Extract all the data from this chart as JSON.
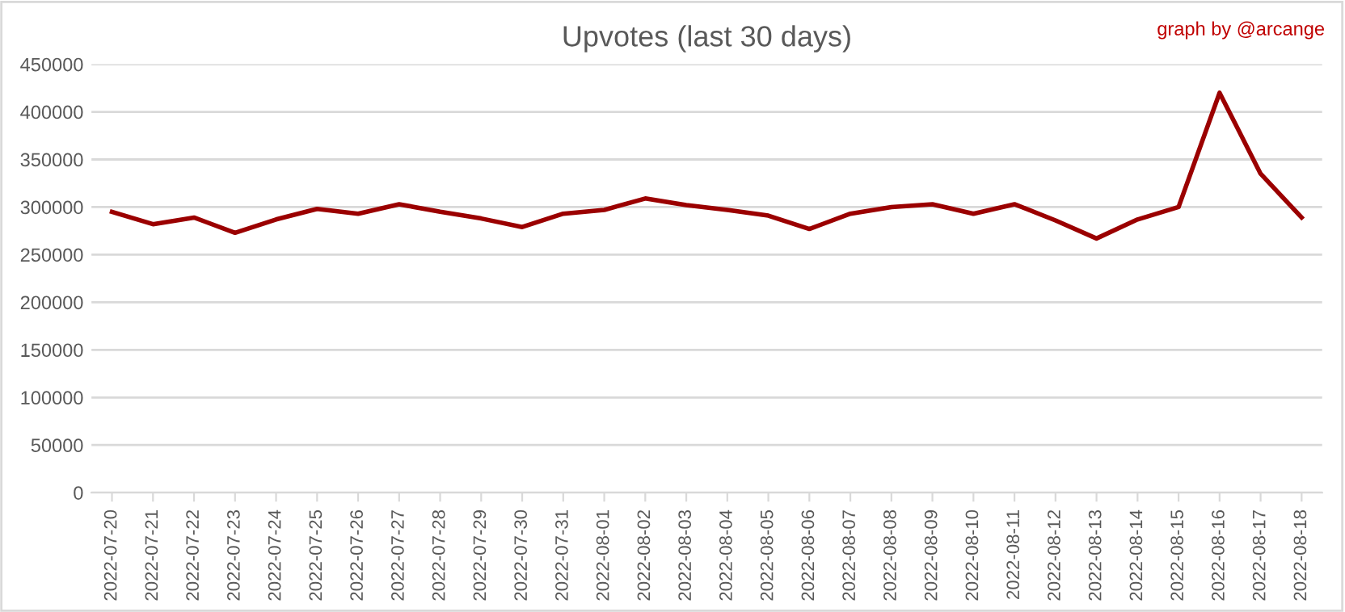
{
  "chart_data": {
    "type": "line",
    "title": "Upvotes (last 30 days)",
    "annotations": [
      "graph by @arcange"
    ],
    "categories": [
      "2022-07-20",
      "2022-07-21",
      "2022-07-22",
      "2022-07-23",
      "2022-07-24",
      "2022-07-25",
      "2022-07-26",
      "2022-07-27",
      "2022-07-28",
      "2022-07-29",
      "2022-07-30",
      "2022-07-31",
      "2022-08-01",
      "2022-08-02",
      "2022-08-03",
      "2022-08-04",
      "2022-08-05",
      "2022-08-06",
      "2022-08-07",
      "2022-08-08",
      "2022-08-09",
      "2022-08-10",
      "2022-08-11",
      "2022-08-12",
      "2022-08-13",
      "2022-08-14",
      "2022-08-15",
      "2022-08-16",
      "2022-08-17",
      "2022-08-18"
    ],
    "series": [
      {
        "color": "#9b0000",
        "values": [
          295000,
          282000,
          289000,
          273000,
          287000,
          298000,
          293000,
          303000,
          295000,
          288000,
          279000,
          293000,
          297000,
          309000,
          302000,
          297000,
          291000,
          277000,
          293000,
          300000,
          303000,
          293000,
          303000,
          286000,
          267000,
          287000,
          300000,
          420000,
          335000,
          289000
        ]
      }
    ],
    "ylim": [
      0,
      450000
    ],
    "yticks": [
      0,
      50000,
      100000,
      150000,
      200000,
      250000,
      300000,
      350000,
      400000,
      450000
    ],
    "grid": "y",
    "marker": "none",
    "line_style": "solid"
  }
}
